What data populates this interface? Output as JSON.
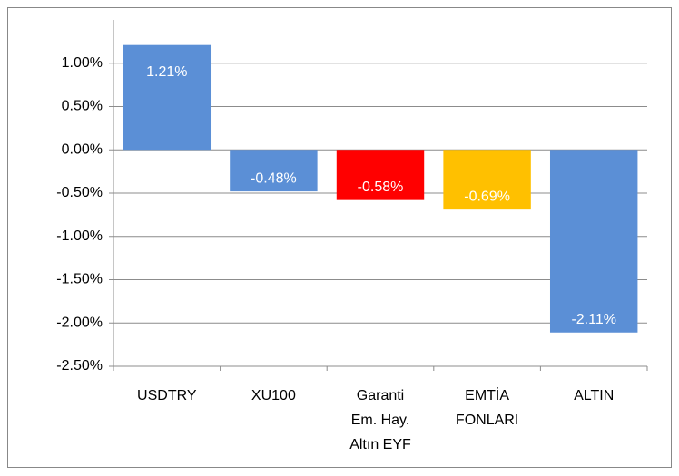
{
  "chart_data": {
    "type": "bar",
    "categories": [
      "USDTRY",
      "XU100",
      "Garanti Em. Hay. Altın  EYF",
      "EMTİA FONLARI",
      "ALTIN"
    ],
    "values": [
      1.21,
      -0.48,
      -0.58,
      -0.69,
      -2.11
    ],
    "value_labels": [
      "1.21%",
      "-0.48%",
      "-0.58%",
      "-0.69%",
      "-2.11%"
    ],
    "colors": [
      "#5b8fd6",
      "#5b8fd6",
      "#ff0000",
      "#ffc000",
      "#5b8fd6"
    ],
    "ylim": [
      -2.5,
      1.5
    ],
    "yticks": [
      {
        "value": 1,
        "label": "1.00%"
      },
      {
        "value": 0.5,
        "label": "0.50%"
      },
      {
        "value": 0,
        "label": "0.00%"
      },
      {
        "value": -0.5,
        "label": "-0.50%"
      },
      {
        "value": -1,
        "label": "-1.00%"
      },
      {
        "value": -1.5,
        "label": "-1.50%"
      },
      {
        "value": -2,
        "label": "-2.00%"
      },
      {
        "value": -2.5,
        "label": "-2.50%"
      }
    ],
    "grid": true
  }
}
